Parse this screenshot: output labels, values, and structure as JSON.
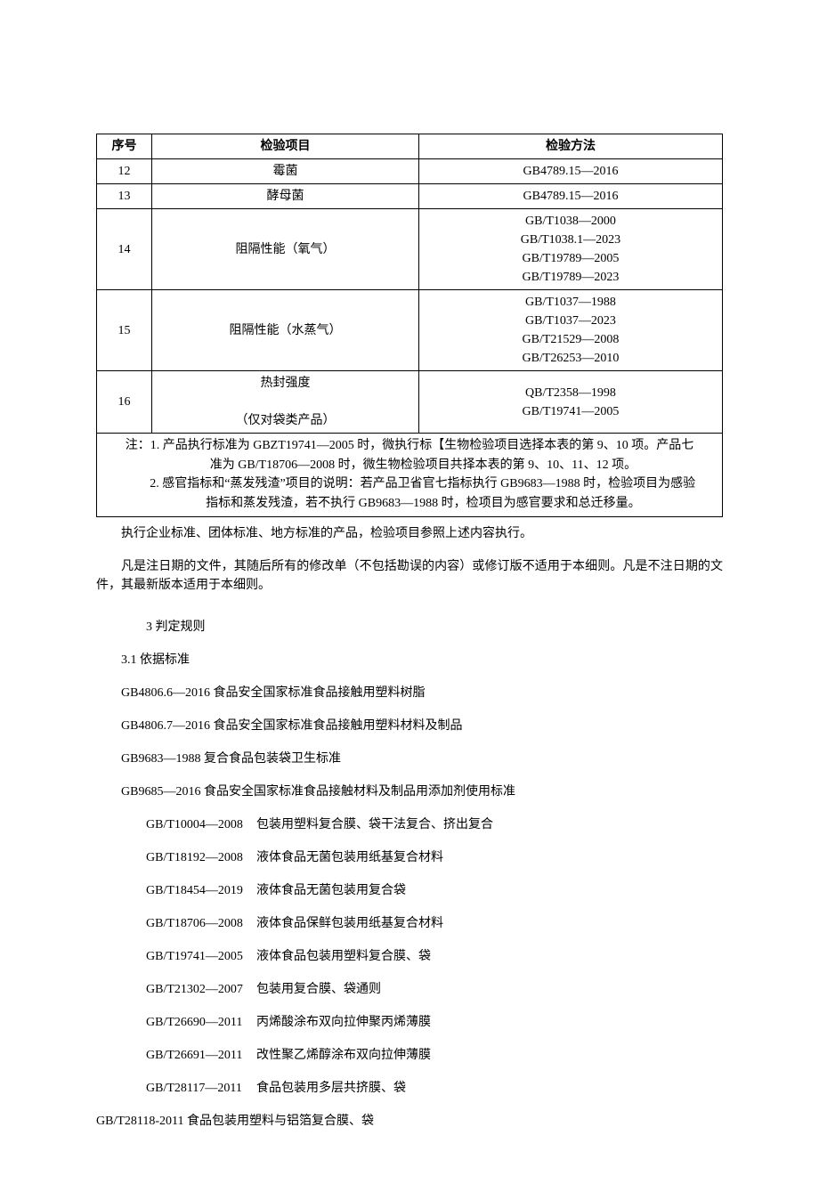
{
  "table": {
    "headers": {
      "seq": "序号",
      "item": "检验项目",
      "method": "检验方法"
    },
    "rows": [
      {
        "seq": "12",
        "item": "霉菌",
        "methods": [
          "GB4789.15—2016"
        ]
      },
      {
        "seq": "13",
        "item": "酵母菌",
        "methods": [
          "GB4789.15—2016"
        ]
      },
      {
        "seq": "14",
        "item": "阻隔性能（氧气）",
        "methods": [
          "GB/T1038—2000",
          "GB/T1038.1—2023",
          "GB/T19789—2005",
          "GB/T19789—2023"
        ]
      },
      {
        "seq": "15",
        "item": "阻隔性能（水蒸气）",
        "methods": [
          "GB/T1037—1988",
          "GB/T1037—2023",
          "GB/T21529—2008",
          "GB/T26253—2010"
        ]
      },
      {
        "seq": "16",
        "item_line1": "热封强度",
        "item_line2": "（仅对袋类产品）",
        "methods": [
          "QB/T2358—1998",
          "GB/T19741—2005"
        ]
      }
    ],
    "note": {
      "l1": "注：1. 产品执行标准为 GBZT19741—2005 时，微执行标【生物检验项目选择本表的第 9、10 项。产品七",
      "l2": "准为 GB/T18706—2008 时，微生物检验项目共择本表的第 9、10、11、12 项。",
      "l3": "2. 感官指标和“蒸发残渣”项目的说明：若产品卫省官七指标执行 GB9683—1988 时，检验项目为感验",
      "l4": "指标和蒸发残渣，若不执行 GB9683—1988 时，检项目为感官要求和总迁移量。"
    }
  },
  "body_paras": {
    "p1": "执行企业标准、团体标准、地方标准的产品，检验项目参照上述内容执行。",
    "p2": "凡是注日期的文件，其随后所有的修改单（不包括勘误的内容）或修订版不适用于本细则。凡是不注日期的文件，其最新版本适用于本细则。",
    "sec3": "3 判定规则",
    "sec31": "3.1 依据标准"
  },
  "standards_simple": [
    "GB4806.6—2016 食品安全国家标准食品接触用塑料树脂",
    "GB4806.7—2016 食品安全国家标准食品接触用塑料材料及制品",
    "GB9683—1988 复合食品包装袋卫生标准",
    "GB9685—2016 食品安全国家标准食品接触材料及制品用添加剂使用标准"
  ],
  "standards_coded": [
    {
      "code": "GB/T10004—2008",
      "name": "包装用塑料复合膜、袋干法复合、挤出复合"
    },
    {
      "code": "GB/T18192—2008",
      "name": "液体食品无菌包装用纸基复合材料"
    },
    {
      "code": "GB/T18454—2019",
      "name": "液体食品无菌包装用复合袋"
    },
    {
      "code": "GB/T18706—2008",
      "name": "液体食品保鲜包装用纸基复合材料"
    },
    {
      "code": "GB/T19741—2005",
      "name": "液体食品包装用塑料复合膜、袋"
    },
    {
      "code": "GB/T21302—2007",
      "name": "包装用复合膜、袋通则"
    },
    {
      "code": "GB/T26690—2011",
      "name": "丙烯酸涂布双向拉伸聚丙烯薄膜"
    },
    {
      "code": "GB/T26691—2011",
      "name": "改性聚乙烯醇涂布双向拉伸薄膜"
    },
    {
      "code": "GB/T28117—2011",
      "name": "食品包装用多层共挤膜、袋"
    }
  ],
  "standards_last": "GB/T28118-2011 食品包装用塑料与铝箔复合膜、袋"
}
